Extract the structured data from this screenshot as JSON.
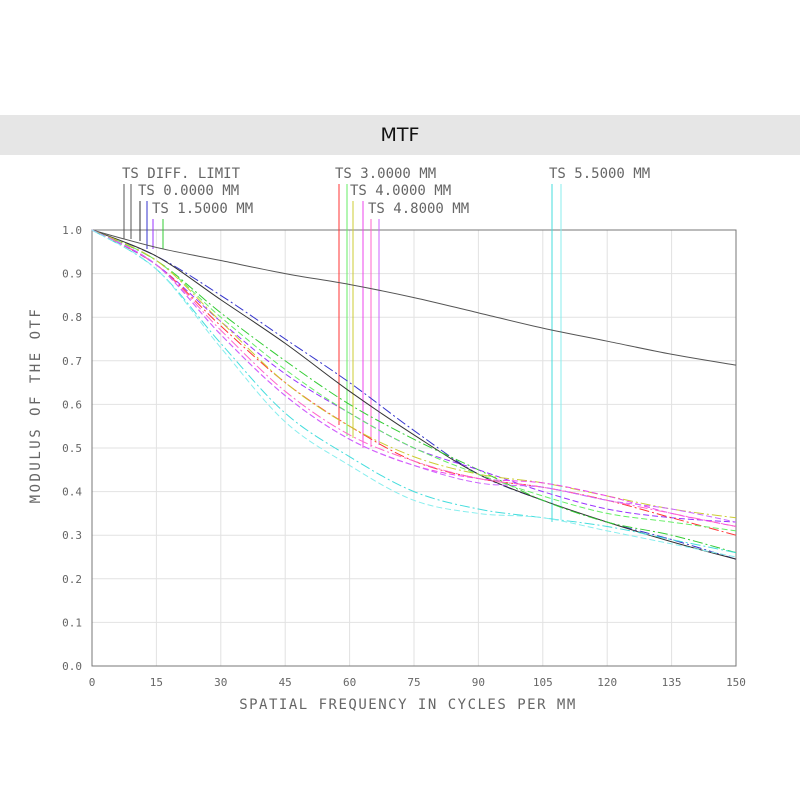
{
  "page": {
    "banner_title": "MTF"
  },
  "chart_data": {
    "type": "line",
    "title": "",
    "xlabel": "SPATIAL FREQUENCY IN CYCLES PER MM",
    "ylabel": "MODULUS OF THE OTF",
    "xlim": [
      0,
      150
    ],
    "ylim": [
      0,
      1
    ],
    "x_ticks": [
      "0",
      "15",
      "30",
      "45",
      "60",
      "75",
      "90",
      "105",
      "120",
      "135",
      "150"
    ],
    "y_ticks": [
      "0.0",
      "0.1",
      "0.2",
      "0.3",
      "0.4",
      "0.5",
      "0.6",
      "0.7",
      "0.8",
      "0.9",
      "1.0"
    ],
    "grid": true,
    "legend": [
      {
        "label": "TS DIFF. LIMIT",
        "colors": [
          "#555555",
          "#555555"
        ]
      },
      {
        "label": "TS 0.0000 MM",
        "colors": [
          "#333333",
          "#3333cc"
        ]
      },
      {
        "label": "TS 1.5000 MM",
        "colors": [
          "#9933ff",
          "#33cc33"
        ]
      },
      {
        "label": "TS 3.0000 MM",
        "colors": [
          "#ff3333",
          "#66ee66"
        ]
      },
      {
        "label": "TS 4.0000 MM",
        "colors": [
          "#cccc33",
          "#ee44ee"
        ]
      },
      {
        "label": "TS 4.8000 MM",
        "colors": [
          "#ff66cc",
          "#cc66ff"
        ]
      },
      {
        "label": "TS 5.5000 MM",
        "colors": [
          "#44dddd",
          "#88eeee"
        ]
      }
    ],
    "x": [
      0,
      15,
      30,
      45,
      60,
      75,
      90,
      105,
      120,
      135,
      150
    ],
    "series": [
      {
        "label_ref": "TS DIFF. LIMIT",
        "color": "#555555",
        "dash": "",
        "values": [
          1.0,
          0.96,
          0.93,
          0.9,
          0.875,
          0.845,
          0.81,
          0.775,
          0.745,
          0.715,
          0.69
        ]
      },
      {
        "label_ref": "TS 0.0000 MM",
        "color": "#3333cc",
        "dash": "10,3,2,3",
        "values": [
          1.0,
          0.94,
          0.85,
          0.75,
          0.65,
          0.54,
          0.44,
          0.38,
          0.33,
          0.29,
          0.245
        ]
      },
      {
        "label_ref": "TS 0.0000 MM",
        "color": "#333333",
        "dash": "",
        "values": [
          1.0,
          0.94,
          0.84,
          0.74,
          0.63,
          0.53,
          0.44,
          0.38,
          0.33,
          0.285,
          0.245
        ]
      },
      {
        "label_ref": "TS 1.5000 MM",
        "color": "#33cc33",
        "dash": "10,3,2,3",
        "values": [
          1.0,
          0.93,
          0.81,
          0.7,
          0.6,
          0.52,
          0.45,
          0.38,
          0.33,
          0.3,
          0.26
        ]
      },
      {
        "label_ref": "TS 1.5000 MM",
        "color": "#9933ff",
        "dash": "6,3",
        "values": [
          1.0,
          0.92,
          0.79,
          0.67,
          0.58,
          0.5,
          0.45,
          0.4,
          0.36,
          0.34,
          0.33
        ]
      },
      {
        "label_ref": "TS 3.0000 MM",
        "color": "#ff3333",
        "dash": "10,3,2,3",
        "values": [
          1.0,
          0.92,
          0.78,
          0.65,
          0.55,
          0.47,
          0.43,
          0.41,
          0.38,
          0.34,
          0.3
        ]
      },
      {
        "label_ref": "TS 3.0000 MM",
        "color": "#66ee66",
        "dash": "6,3",
        "values": [
          1.0,
          0.93,
          0.8,
          0.68,
          0.58,
          0.5,
          0.44,
          0.39,
          0.35,
          0.33,
          0.31
        ]
      },
      {
        "label_ref": "TS 4.0000 MM",
        "color": "#cccc33",
        "dash": "10,3,2,3",
        "values": [
          1.0,
          0.93,
          0.79,
          0.65,
          0.55,
          0.48,
          0.44,
          0.42,
          0.39,
          0.36,
          0.34
        ]
      },
      {
        "label_ref": "TS 4.0000 MM",
        "color": "#ee44ee",
        "dash": "6,3",
        "values": [
          1.0,
          0.92,
          0.76,
          0.62,
          0.52,
          0.46,
          0.43,
          0.42,
          0.39,
          0.35,
          0.32
        ]
      },
      {
        "label_ref": "TS 4.8000 MM",
        "color": "#ff66cc",
        "dash": "10,3,2,3",
        "values": [
          1.0,
          0.92,
          0.77,
          0.63,
          0.53,
          0.47,
          0.43,
          0.41,
          0.38,
          0.35,
          0.32
        ]
      },
      {
        "label_ref": "TS 4.8000 MM",
        "color": "#cc66ff",
        "dash": "6,3",
        "values": [
          1.0,
          0.92,
          0.76,
          0.62,
          0.52,
          0.46,
          0.42,
          0.41,
          0.38,
          0.36,
          0.33
        ]
      },
      {
        "label_ref": "TS 5.5000 MM",
        "color": "#44dddd",
        "dash": "10,3,2,3",
        "values": [
          1.0,
          0.91,
          0.74,
          0.58,
          0.48,
          0.4,
          0.36,
          0.34,
          0.32,
          0.29,
          0.26
        ]
      },
      {
        "label_ref": "TS 5.5000 MM",
        "color": "#88eeee",
        "dash": "6,3",
        "values": [
          1.0,
          0.91,
          0.73,
          0.56,
          0.46,
          0.38,
          0.35,
          0.34,
          0.31,
          0.28,
          0.25
        ]
      }
    ]
  }
}
